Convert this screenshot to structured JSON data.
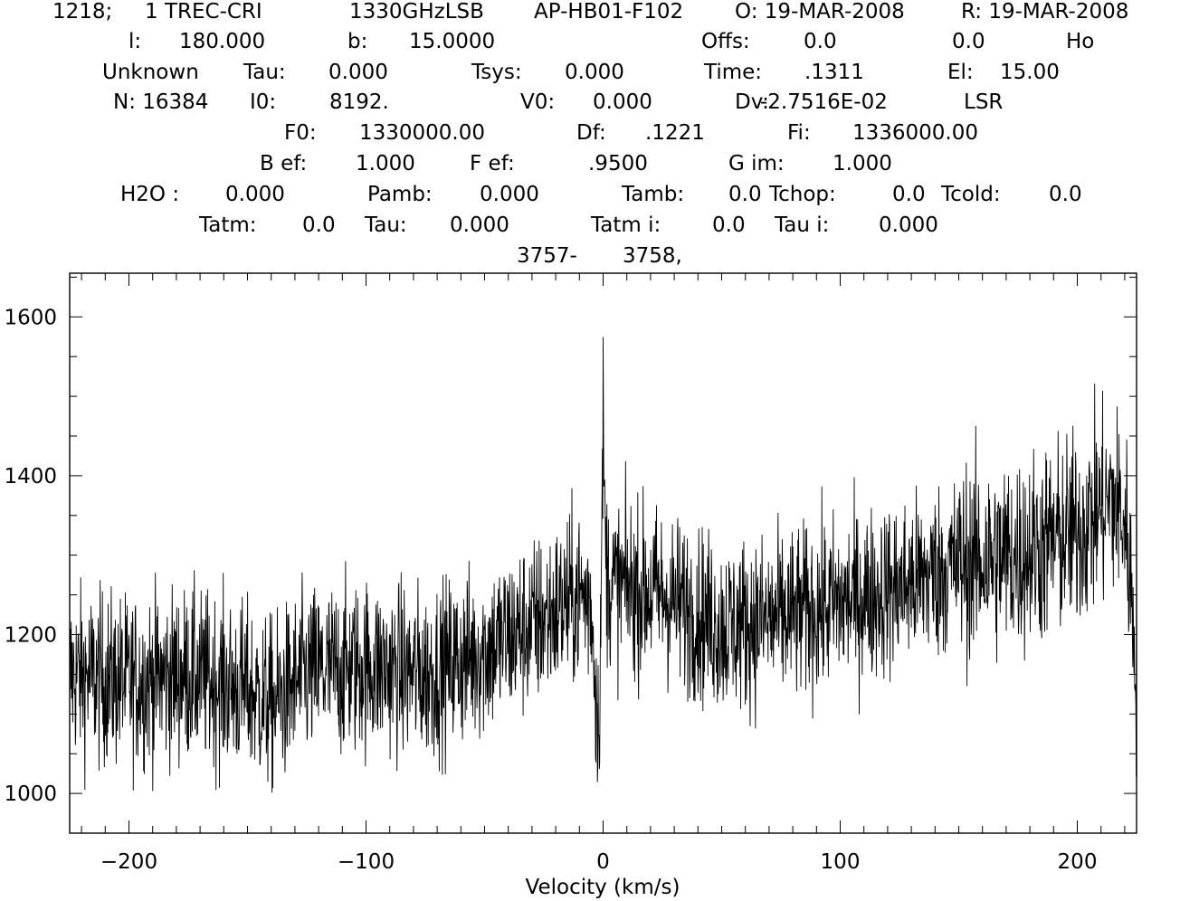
{
  "header": {
    "lines": [
      [
        {
          "text": "1218;"
        },
        {
          "text": "1 TREC-CRI"
        },
        {
          "text": "1330GHzLSB"
        },
        {
          "text": "AP-HB01-F102"
        },
        {
          "text": "O: 19-MAR-2008"
        },
        {
          "text": "R: 19-MAR-2008"
        }
      ],
      [
        {
          "text": "l:"
        },
        {
          "text": "180.000"
        },
        {
          "text": "b:"
        },
        {
          "text": "15.0000"
        },
        {
          "text": "Offs:"
        },
        {
          "text": "0.0"
        },
        {
          "text": "0.0"
        },
        {
          "text": "Ho"
        }
      ],
      [
        {
          "text": "Unknown"
        },
        {
          "text": "Tau:"
        },
        {
          "text": "0.000"
        },
        {
          "text": "Tsys:"
        },
        {
          "text": "0.000"
        },
        {
          "text": "Time:"
        },
        {
          "text": ".1311"
        },
        {
          "text": "El:"
        },
        {
          "text": "15.00"
        }
      ],
      [
        {
          "text": "N: 16384"
        },
        {
          "text": "I0:"
        },
        {
          "text": "8192."
        },
        {
          "text": "V0:"
        },
        {
          "text": "0.000"
        },
        {
          "text": "Dv:"
        },
        {
          "text": "-2.7516E-02"
        },
        {
          "text": "LSR"
        }
      ],
      [
        {
          "text": "F0:"
        },
        {
          "text": "1330000.00"
        },
        {
          "text": "Df:"
        },
        {
          "text": ".1221"
        },
        {
          "text": "Fi:"
        },
        {
          "text": "1336000.00"
        }
      ],
      [
        {
          "text": "B ef:"
        },
        {
          "text": "1.000"
        },
        {
          "text": "F ef:"
        },
        {
          "text": ".9500"
        },
        {
          "text": "G im:"
        },
        {
          "text": "1.000"
        }
      ],
      [
        {
          "text": "H2O :"
        },
        {
          "text": "0.000"
        },
        {
          "text": "Pamb:"
        },
        {
          "text": "0.000"
        },
        {
          "text": "Tamb:"
        },
        {
          "text": "0.0"
        },
        {
          "text": "Tchop:"
        },
        {
          "text": "0.0"
        },
        {
          "text": "Tcold:"
        },
        {
          "text": "0.0"
        }
      ],
      [
        {
          "text": "Tatm:"
        },
        {
          "text": "0.0"
        },
        {
          "text": "Tau:"
        },
        {
          "text": "0.000"
        },
        {
          "text": "Tatm i:"
        },
        {
          "text": "0.0"
        },
        {
          "text": "Tau i:"
        },
        {
          "text": "0.000"
        }
      ],
      [
        {
          "text": "3757-"
        },
        {
          "text": "3758,"
        }
      ]
    ]
  },
  "chart_data": {
    "type": "line",
    "title": "",
    "xlabel": "Velocity (km/s)",
    "ylabel": "",
    "xlim": [
      -225,
      225
    ],
    "ylim": [
      950,
      1655
    ],
    "xticks": [
      -200,
      -100,
      0,
      100,
      200
    ],
    "yticks": [
      1000,
      1200,
      1400,
      1600
    ],
    "xtick_labels": [
      "−200",
      "−100",
      "0",
      "100",
      "200"
    ],
    "ytick_labels": [
      "1000",
      "1200",
      "1400",
      "1600"
    ],
    "grid": false,
    "legend": "none",
    "line_color": "#000000",
    "series": [
      {
        "x": [
          -225,
          -200,
          -175,
          -150,
          -140,
          -125,
          -100,
          -75,
          -50,
          -25,
          -10,
          -5,
          -4,
          -3,
          -2,
          -1,
          0,
          1,
          2,
          5,
          10,
          25,
          50,
          75,
          100,
          125,
          150,
          175,
          200,
          210,
          215,
          220,
          222,
          224,
          225
        ],
        "y": [
          1150,
          1140,
          1150,
          1130,
          1110,
          1150,
          1160,
          1150,
          1180,
          1220,
          1250,
          1240,
          1180,
          1130,
          1080,
          1200,
          1470,
          1300,
          1270,
          1260,
          1260,
          1250,
          1210,
          1220,
          1240,
          1260,
          1290,
          1300,
          1330,
          1360,
          1370,
          1340,
          1290,
          1200,
          1150
        ],
        "noise_amplitude": 55
      }
    ]
  }
}
